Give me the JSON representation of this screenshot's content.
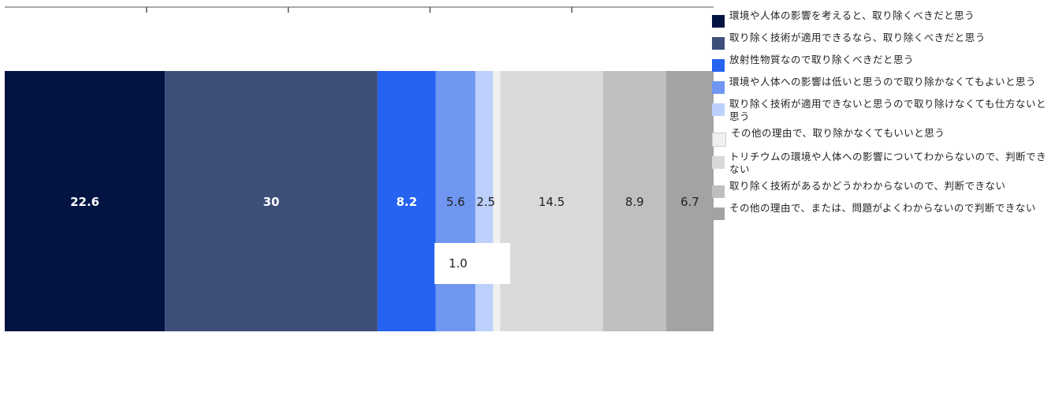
{
  "chart_data": {
    "type": "bar",
    "orientation": "horizontal-stacked-100",
    "title": "",
    "xlabel": "",
    "ylabel": "",
    "xlim": [
      0,
      100
    ],
    "legend_position": "right",
    "series": [
      {
        "name": "環境や人体の影響を考えると、取り除くべきだと思う",
        "value": 22.6,
        "label": "22.6",
        "color": "#041442",
        "label_color": "#ffffff"
      },
      {
        "name": "取り除く技術が適用できるなら、取り除くべきだと思う",
        "value": 30,
        "label": "30",
        "color": "#3d4e79",
        "label_color": "#ffffff"
      },
      {
        "name": "放射性物質なので取り除くべきだと思う",
        "value": 8.2,
        "label": "8.2",
        "color": "#2563f0",
        "label_color": "#ffffff"
      },
      {
        "name": "環境や人体への影響は低いと思うので取り除かなくてもよいと思う",
        "value": 5.6,
        "label": "5.6",
        "color": "#6f97f2",
        "label_color": "#222222"
      },
      {
        "name": "取り除く技術が適用できないと思うので取り除けなくても仕方ないと思う",
        "value": 2.5,
        "label": "2.5",
        "color": "#bcd0fb",
        "label_color": "#222222"
      },
      {
        "name": "その他の理由で、取り除かなくてもいいと思う",
        "value": 1.0,
        "label": "1.0",
        "color": "#f0f0f0",
        "label_color": "#222222"
      },
      {
        "name": "トリチウムの環境や人体への影響についてわからないので、判断できない",
        "value": 14.5,
        "label": "14.5",
        "color": "#d9d9d9",
        "label_color": "#222222"
      },
      {
        "name": "取り除く技術があるかどうかわからないので、判断できない",
        "value": 8.9,
        "label": "8.9",
        "color": "#bfbfbf",
        "label_color": "#222222"
      },
      {
        "name": "その他の理由で、または、問題がよくわからないので判断できない",
        "value": 6.7,
        "label": "6.7",
        "color": "#a3a3a3",
        "label_color": "#222222"
      }
    ],
    "callout_label": "1.0"
  }
}
